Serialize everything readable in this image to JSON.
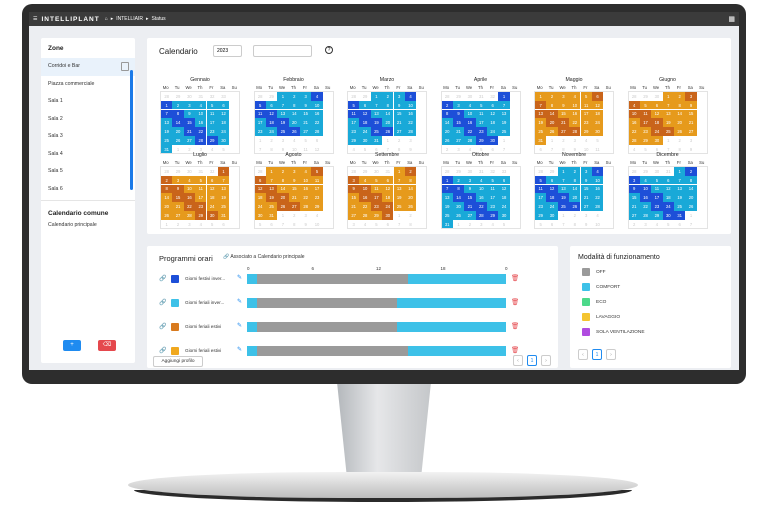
{
  "topbar": {
    "brand": "INTELLIPLANT",
    "home": "⌂",
    "crumb1": "INTELLIAIR",
    "crumb2": "Status"
  },
  "sidebar": {
    "zones_title": "Zone",
    "items": [
      {
        "label": "Corridoi e Bar"
      },
      {
        "label": "Piazza commerciale"
      },
      {
        "label": "Sala 1"
      },
      {
        "label": "Sala 2"
      },
      {
        "label": "Sala 3"
      },
      {
        "label": "Sala 4"
      },
      {
        "label": "Sala 5"
      },
      {
        "label": "Sala 6"
      }
    ],
    "common_title": "Calendario comune",
    "common_item": "Calendario principale",
    "add_label": "+",
    "del_label": "⌫"
  },
  "calendar": {
    "title": "Calendario",
    "year": "2023",
    "help": "?",
    "weekdays": [
      "Mo",
      "Tu",
      "We",
      "Th",
      "Fr",
      "Sa",
      "Su"
    ],
    "months": [
      {
        "name": "Gennaio",
        "start": 6,
        "days": 31,
        "pattern": "a"
      },
      {
        "name": "Febbraio",
        "start": 2,
        "days": 28,
        "pattern": "a"
      },
      {
        "name": "Marzo",
        "start": 2,
        "days": 31,
        "pattern": "a"
      },
      {
        "name": "Aprile",
        "start": 5,
        "days": 30,
        "pattern": "a"
      },
      {
        "name": "Maggio",
        "start": 0,
        "days": 31,
        "pattern": "b"
      },
      {
        "name": "Giugno",
        "start": 3,
        "days": 30,
        "pattern": "b"
      },
      {
        "name": "Luglio",
        "start": 5,
        "days": 31,
        "pattern": "b"
      },
      {
        "name": "Agosto",
        "start": 1,
        "days": 31,
        "pattern": "b"
      },
      {
        "name": "Settembre",
        "start": 4,
        "days": 30,
        "pattern": "b"
      },
      {
        "name": "Ottobre",
        "start": 6,
        "days": 31,
        "pattern": "a"
      },
      {
        "name": "Novembre",
        "start": 2,
        "days": 30,
        "pattern": "a"
      },
      {
        "name": "Dicembre",
        "start": 4,
        "days": 31,
        "pattern": "a"
      }
    ]
  },
  "programs": {
    "title": "Programmi orari",
    "assoc": "Associato a Calendario principale",
    "scale": [
      "0",
      "6",
      "12",
      "18",
      "0"
    ],
    "rows": [
      {
        "label": "Giorni festivi inver...",
        "color": "#1d4fd8",
        "segs": [
          [
            4,
            "#3dc1e8"
          ],
          [
            58,
            "#9a9a9a"
          ],
          [
            38,
            "#3dc1e8"
          ]
        ]
      },
      {
        "label": "Giorni feriali inver...",
        "color": "#3dc1e8",
        "segs": [
          [
            4,
            "#3dc1e8"
          ],
          [
            54,
            "#9a9a9a"
          ],
          [
            42,
            "#3dc1e8"
          ]
        ]
      },
      {
        "label": "Giorni feriali estivi",
        "color": "#d87a1e",
        "segs": [
          [
            4,
            "#3dc1e8"
          ],
          [
            54,
            "#9a9a9a"
          ],
          [
            42,
            "#3dc1e8"
          ]
        ]
      },
      {
        "label": "Giorni feriali estivi",
        "color": "#f0a81e",
        "segs": [
          [
            4,
            "#3dc1e8"
          ],
          [
            58,
            "#9a9a9a"
          ],
          [
            38,
            "#3dc1e8"
          ]
        ]
      }
    ],
    "add": "Aggiungi profilo",
    "page": "1"
  },
  "modes": {
    "title": "Modalità di funzionamento",
    "items": [
      {
        "label": "OFF",
        "color": "#9a9a9a"
      },
      {
        "label": "COMFORT",
        "color": "#3dc1e8"
      },
      {
        "label": "ECO",
        "color": "#4cd98a"
      },
      {
        "label": "LAVAGGIO",
        "color": "#f4c430"
      },
      {
        "label": "SOLA VENTILAZIONE",
        "color": "#b04ce0"
      }
    ],
    "page": "1"
  },
  "palette": {
    "weekday": "#19a9d8",
    "sat": "#1d4fd8",
    "sun": "#1d4fd8",
    "sum_wd": "#e69a1c",
    "sum_we": "#c9641a"
  }
}
